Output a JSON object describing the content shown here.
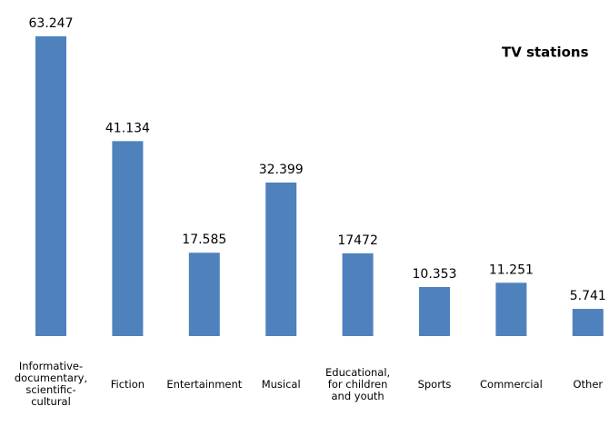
{
  "chart_data": {
    "type": "bar",
    "title": "TV stations",
    "categories": [
      "Informative-documentary, scientific-cultural",
      "Fiction",
      "Entertainment",
      "Musical",
      "Educational, for children and youth",
      "Sports",
      "Commercial",
      "Other"
    ],
    "values": [
      63247,
      41134,
      17585,
      32399,
      17472,
      10353,
      11251,
      5741
    ],
    "value_labels": [
      "63.247",
      "41.134",
      "17.585",
      "32.399",
      "17472",
      "10.353",
      "11.251",
      "5.741"
    ],
    "color": "#4f81bd"
  }
}
